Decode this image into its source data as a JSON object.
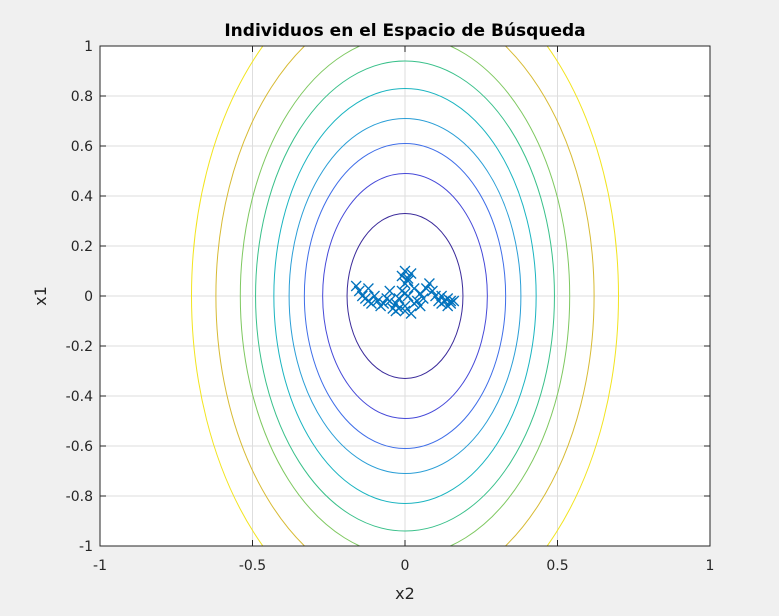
{
  "chart_data": {
    "type": "scatter",
    "title": "Individuos en el Espacio de Búsqueda",
    "xlabel": "x2",
    "ylabel": "x1",
    "xlim": [
      -1,
      1
    ],
    "ylim": [
      -1,
      1
    ],
    "grid": true,
    "x_ticks": [
      "-1",
      "-0.5",
      "0",
      "0.5",
      "1"
    ],
    "y_ticks": [
      "-1",
      "-0.8",
      "-0.6",
      "-0.4",
      "-0.2",
      "0",
      "0.2",
      "0.4",
      "0.6",
      "0.8",
      "1"
    ],
    "contours": [
      {
        "x_radius": 0.19,
        "y_radius": 0.33,
        "color": "#3a2a9a"
      },
      {
        "x_radius": 0.27,
        "y_radius": 0.49,
        "color": "#4548d8"
      },
      {
        "x_radius": 0.33,
        "y_radius": 0.61,
        "color": "#3f6ee8"
      },
      {
        "x_radius": 0.38,
        "y_radius": 0.71,
        "color": "#2a9ed6"
      },
      {
        "x_radius": 0.43,
        "y_radius": 0.83,
        "color": "#1ab4c0"
      },
      {
        "x_radius": 0.49,
        "y_radius": 0.94,
        "color": "#39c08a"
      },
      {
        "x_radius": 0.54,
        "y_radius": 1.04,
        "color": "#7ec860"
      },
      {
        "x_radius": 0.62,
        "y_radius": 1.18,
        "color": "#d7ba33"
      },
      {
        "x_radius": 0.7,
        "y_radius": 1.34,
        "color": "#f2e41e"
      }
    ],
    "series": [
      {
        "marker": "x",
        "color": "#0072bd",
        "x": [
          -0.16,
          -0.15,
          -0.14,
          -0.13,
          -0.12,
          -0.11,
          -0.1,
          -0.09,
          -0.08,
          -0.07,
          -0.06,
          -0.05,
          -0.04,
          -0.03,
          -0.02,
          -0.01,
          0.0,
          0.01,
          0.02,
          0.03,
          0.04,
          0.05,
          0.06,
          0.07,
          0.08,
          0.09,
          0.1,
          0.11,
          0.12,
          0.13,
          0.14,
          0.15,
          0.16,
          -0.01,
          0.0,
          0.01,
          0.0,
          -0.02,
          0.02,
          0.03,
          -0.03,
          0.0,
          0.01,
          0.14,
          0.15,
          -0.05,
          0.05,
          0.12,
          -0.12,
          0.0
        ],
        "y": [
          0.04,
          0.02,
          0.0,
          -0.01,
          -0.02,
          -0.03,
          0.0,
          -0.02,
          -0.04,
          -0.03,
          -0.01,
          -0.02,
          -0.05,
          -0.03,
          -0.01,
          0.02,
          0.05,
          0.07,
          0.09,
          0.03,
          -0.02,
          -0.04,
          -0.01,
          0.03,
          0.05,
          0.02,
          0.0,
          -0.02,
          -0.03,
          -0.02,
          -0.04,
          -0.03,
          -0.02,
          0.08,
          0.1,
          0.06,
          -0.06,
          -0.05,
          -0.07,
          -0.03,
          -0.06,
          0.01,
          0.0,
          -0.01,
          -0.02,
          0.02,
          0.01,
          0.0,
          0.03,
          -0.04
        ]
      }
    ]
  }
}
